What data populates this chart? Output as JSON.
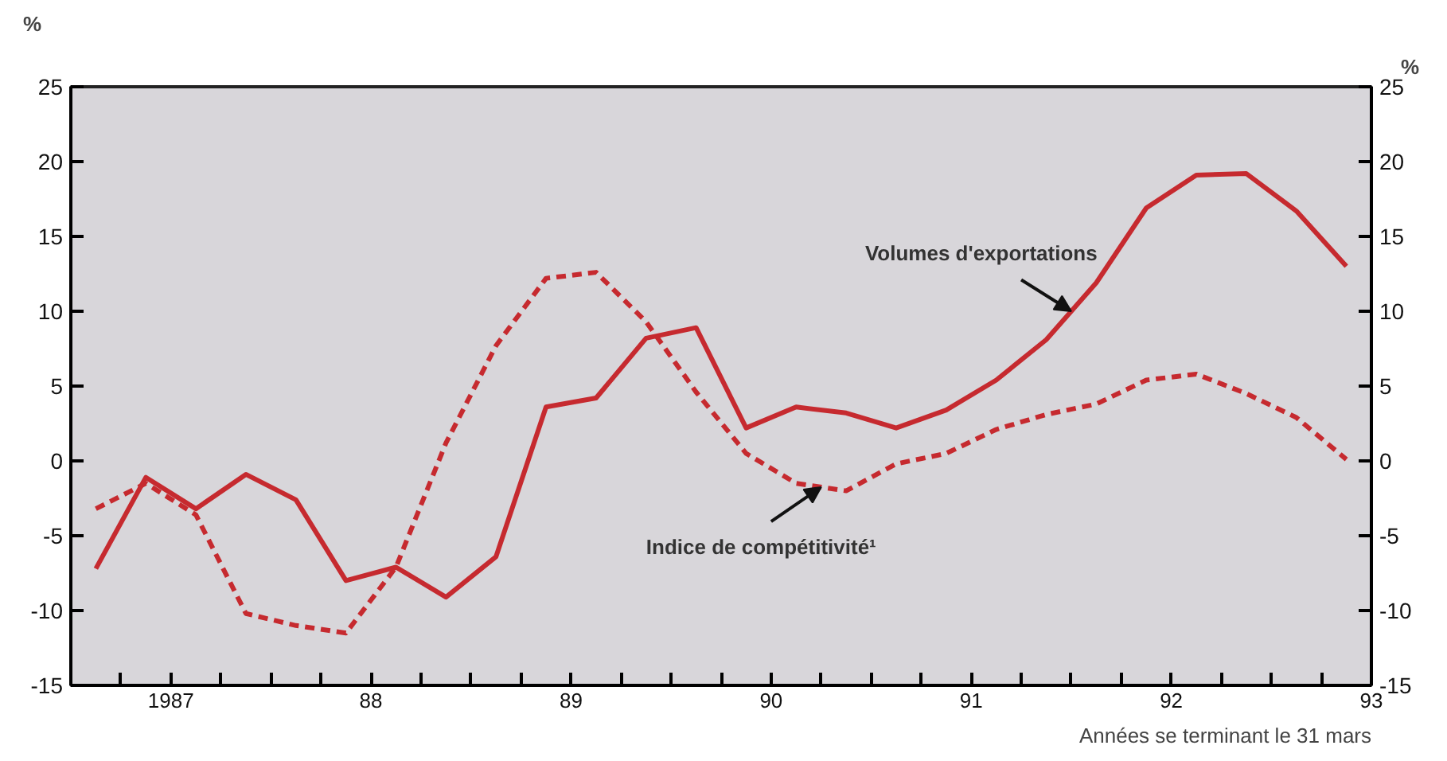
{
  "chart_data": {
    "type": "line",
    "ylabel": "%",
    "y2label": "%",
    "xlabel": "Années se terminant le 31 mars",
    "x": [
      1986.625,
      1986.875,
      1987.125,
      1987.375,
      1987.625,
      1987.875,
      1988.125,
      1988.375,
      1988.625,
      1988.875,
      1989.125,
      1989.375,
      1989.625,
      1989.875,
      1990.125,
      1990.375,
      1990.625,
      1990.875,
      1991.125,
      1991.375,
      1991.625,
      1991.875,
      1992.125,
      1992.375,
      1992.625,
      1992.875
    ],
    "series": [
      {
        "name": "Volumes d'exportations",
        "color": "#c62a2f",
        "line_style": "solid",
        "values": [
          -7.2,
          -1.1,
          -3.2,
          -0.9,
          -2.6,
          -8.0,
          -7.1,
          -9.1,
          -6.4,
          3.6,
          4.2,
          8.2,
          8.9,
          2.2,
          3.6,
          3.2,
          2.2,
          3.4,
          5.4,
          8.1,
          11.9,
          16.9,
          19.1,
          19.2,
          16.7,
          13.0
        ]
      },
      {
        "name": "Indice de compétitivité¹",
        "color": "#c62a2f",
        "line_style": "dashed",
        "values": [
          -3.2,
          -1.5,
          -3.6,
          -10.2,
          -11.0,
          -11.5,
          -7.1,
          1.2,
          7.7,
          12.2,
          12.6,
          9.3,
          4.6,
          0.5,
          -1.5,
          -2.0,
          -0.2,
          0.5,
          2.1,
          3.1,
          3.8,
          5.4,
          5.8,
          4.5,
          2.9,
          0.1
        ]
      }
    ],
    "xlim": [
      1986.5,
      1993
    ],
    "xticks": [
      {
        "value": 1986.75,
        "label": null
      },
      {
        "value": 1987,
        "label": "1987"
      },
      {
        "value": 1987.25,
        "label": null
      },
      {
        "value": 1987.5,
        "label": null
      },
      {
        "value": 1987.75,
        "label": null
      },
      {
        "value": 1988,
        "label": "88"
      },
      {
        "value": 1988.25,
        "label": null
      },
      {
        "value": 1988.5,
        "label": null
      },
      {
        "value": 1988.75,
        "label": null
      },
      {
        "value": 1989,
        "label": "89"
      },
      {
        "value": 1989.25,
        "label": null
      },
      {
        "value": 1989.5,
        "label": null
      },
      {
        "value": 1989.75,
        "label": null
      },
      {
        "value": 1990,
        "label": "90"
      },
      {
        "value": 1990.25,
        "label": null
      },
      {
        "value": 1990.5,
        "label": null
      },
      {
        "value": 1990.75,
        "label": null
      },
      {
        "value": 1991,
        "label": "91"
      },
      {
        "value": 1991.25,
        "label": null
      },
      {
        "value": 1991.5,
        "label": null
      },
      {
        "value": 1991.75,
        "label": null
      },
      {
        "value": 1992,
        "label": "92"
      },
      {
        "value": 1992.25,
        "label": null
      },
      {
        "value": 1992.5,
        "label": null
      },
      {
        "value": 1992.75,
        "label": null
      },
      {
        "value": 1993,
        "label": "93"
      }
    ],
    "ylim": [
      -15,
      25
    ],
    "yticks": [
      -15,
      -10,
      -5,
      0,
      5,
      10,
      15,
      20,
      25
    ],
    "y2lim": [
      -15,
      25
    ],
    "y2ticks": [
      -15,
      -10,
      -5,
      0,
      5,
      10,
      15,
      20,
      25
    ],
    "grid": false,
    "legend": false,
    "marker": "none"
  }
}
